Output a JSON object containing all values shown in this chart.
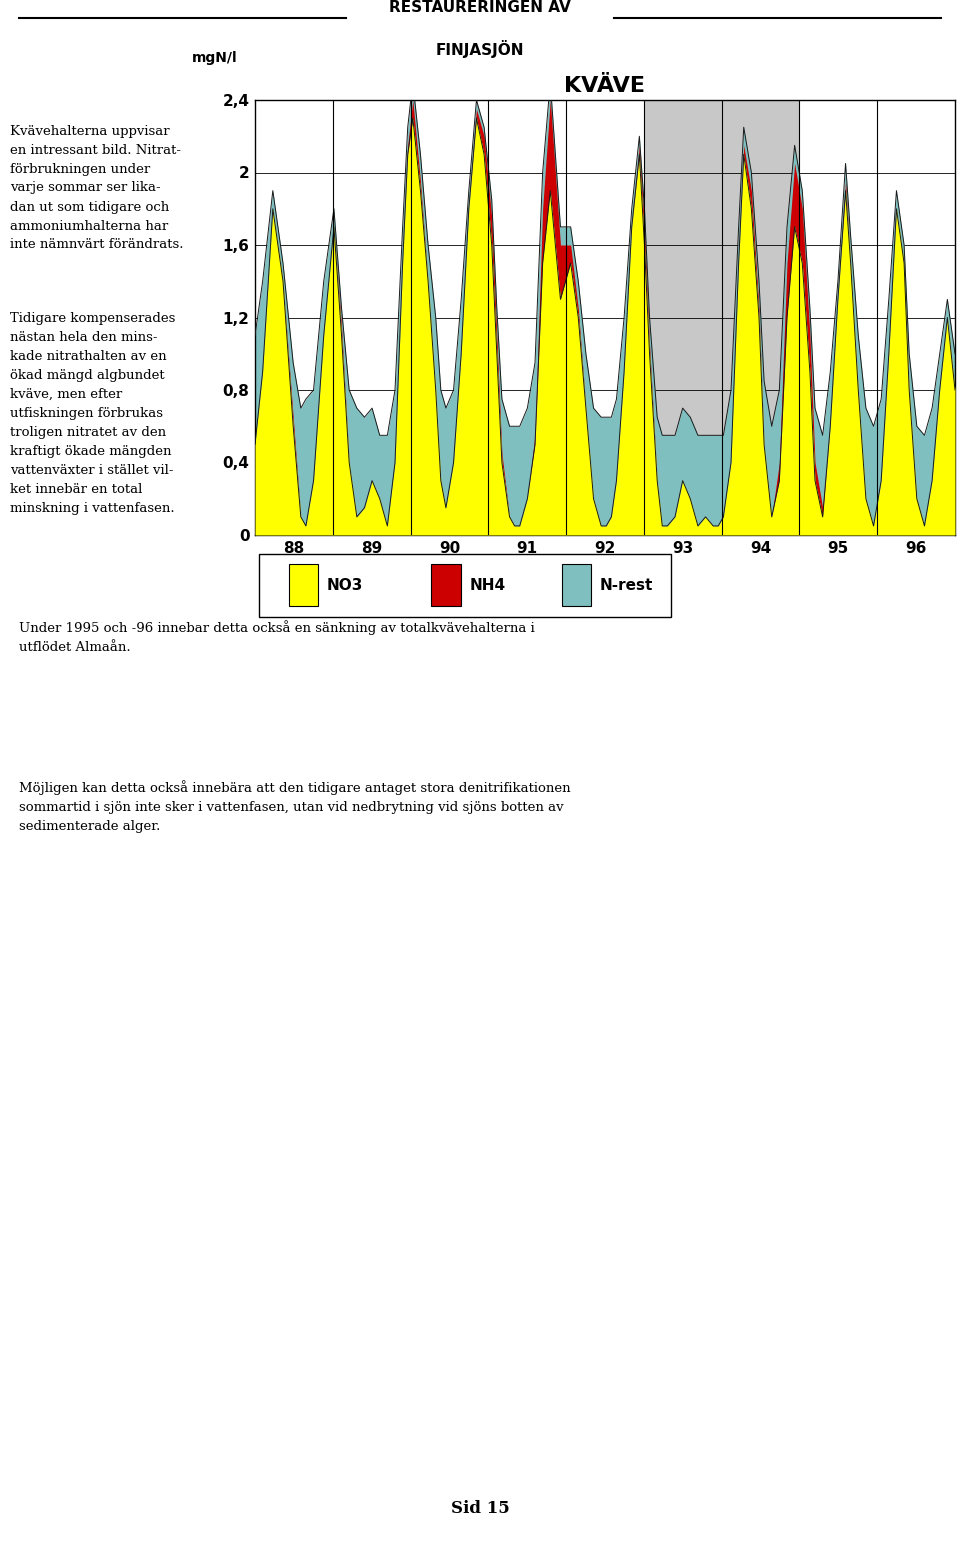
{
  "title": "KVÄVE",
  "header_line1": "RESTAURERINGEN AV",
  "header_line2": "FINJASJÖN",
  "ylabel": "mgN/l",
  "ylim": [
    0,
    2.4
  ],
  "yticks": [
    0,
    0.4,
    0.8,
    1.2,
    1.6,
    2.0,
    2.4
  ],
  "ytick_labels": [
    "0",
    "0,4",
    "0,8",
    "1,2",
    "1,6",
    "2",
    "2,4"
  ],
  "x_labels": [
    "88",
    "89",
    "90",
    "91",
    "92",
    "93",
    "94",
    "95",
    "96"
  ],
  "gray_region_years": [
    5,
    6
  ],
  "legend_items": [
    "NO3",
    "NH4",
    "N-rest"
  ],
  "legend_colors": [
    "#FFFF00",
    "#CC0000",
    "#7FBFBF"
  ],
  "colors": {
    "no3": "#FFFF00",
    "nh4": "#CC0000",
    "n_rest": "#7FBFBF",
    "outline": "#1a1a1a",
    "gray_bg": "#C8C8C8"
  },
  "left_text_para1": "Kvävehalterna uppvisar\nen intressant bild. Nitrat-\nförbrukningen under\nvarje sommar ser lika-\ndan ut som tidigare och\nammoniumhalterna har\ninte nämnvärt förändrats.",
  "left_text_para2": "Tidigare kompenserades\nnästan hela den mins-\nkade nitrathalten av en\nökad mängd algbundet\nkväve, men efter\nutfiskningen förbrukas\ntroligen nitratet av den\nkraftigt ökade mängden\nvattenväxter i stället vil-\nket innebär en total\nminskning i vattenfasen.",
  "below_chart_text": "Under 1995 och -96 innebar detta också en sänkning av totalkvävehalterna i\nutflödet Almaån.",
  "bottom_text": "Möjligen kan detta också innebära att den tidigare antaget stora denitrifikationen\nsommartid i sjön inte sker i vattenfasen, utan vid nedbrytning vid sjöns botten av\nsedimenterade alger.",
  "page_num": "Sid 15",
  "x_raw": [
    0.0,
    0.15,
    0.35,
    0.55,
    0.75,
    0.9,
    1.0,
    1.15,
    1.35,
    1.55,
    1.7,
    1.85,
    2.0,
    2.15,
    2.3,
    2.45,
    2.6,
    2.75,
    2.9,
    3.0,
    3.1,
    3.25,
    3.4,
    3.55,
    3.65,
    3.75,
    3.9,
    4.05,
    4.2,
    4.35,
    4.5,
    4.65,
    4.75,
    4.85,
    5.0,
    5.1,
    5.2,
    5.35,
    5.5,
    5.65,
    5.8,
    5.9,
    6.0,
    6.1,
    6.2,
    6.35,
    6.5,
    6.65,
    6.8,
    6.9,
    7.0,
    7.1,
    7.25,
    7.4,
    7.55,
    7.65,
    7.75,
    7.9,
    8.0,
    8.1,
    8.25,
    8.4,
    8.55,
    8.7,
    8.85,
    9.0,
    9.1,
    9.2,
    9.35,
    9.5,
    9.6,
    9.75,
    9.9,
    10.0,
    10.15,
    10.3,
    10.45,
    10.6,
    10.75,
    10.9,
    11.0,
    11.15,
    11.3,
    11.45,
    11.6,
    11.7,
    11.85,
    12.0,
    12.15,
    12.3,
    12.45,
    12.6,
    12.75,
    12.85,
    13.0,
    13.15,
    13.3,
    13.45,
    13.6,
    13.75
  ],
  "no3": [
    0.5,
    0.9,
    1.8,
    1.4,
    0.6,
    0.1,
    0.05,
    0.3,
    1.1,
    1.7,
    1.1,
    0.4,
    0.1,
    0.15,
    0.3,
    0.2,
    0.05,
    0.4,
    1.5,
    2.1,
    2.3,
    1.9,
    1.4,
    0.8,
    0.3,
    0.15,
    0.4,
    1.0,
    1.8,
    2.3,
    2.1,
    1.6,
    1.0,
    0.4,
    0.1,
    0.05,
    0.05,
    0.2,
    0.5,
    1.5,
    1.9,
    1.6,
    1.3,
    1.4,
    1.5,
    1.2,
    0.7,
    0.2,
    0.05,
    0.05,
    0.1,
    0.3,
    0.9,
    1.7,
    2.1,
    1.6,
    1.0,
    0.3,
    0.05,
    0.05,
    0.1,
    0.3,
    0.2,
    0.05,
    0.1,
    0.05,
    0.05,
    0.1,
    0.4,
    1.5,
    2.1,
    1.8,
    1.2,
    0.5,
    0.1,
    0.3,
    1.2,
    1.7,
    1.5,
    0.9,
    0.3,
    0.1,
    0.6,
    1.3,
    1.9,
    1.5,
    0.8,
    0.2,
    0.05,
    0.3,
    1.0,
    1.8,
    1.5,
    0.8,
    0.2,
    0.05,
    0.3,
    0.8,
    1.2,
    0.8
  ],
  "nh4": [
    0.0,
    0.0,
    0.0,
    0.0,
    0.05,
    0.0,
    0.0,
    0.0,
    0.0,
    0.0,
    0.05,
    0.0,
    0.0,
    0.0,
    0.0,
    0.0,
    0.0,
    0.0,
    0.0,
    0.05,
    0.1,
    0.05,
    0.0,
    0.0,
    0.0,
    0.0,
    0.0,
    0.0,
    0.0,
    0.05,
    0.1,
    0.15,
    0.1,
    0.05,
    0.0,
    0.0,
    0.0,
    0.0,
    0.05,
    0.3,
    0.5,
    0.4,
    0.3,
    0.2,
    0.1,
    0.05,
    0.0,
    0.0,
    0.0,
    0.0,
    0.0,
    0.0,
    0.0,
    0.0,
    0.05,
    0.1,
    0.05,
    0.0,
    0.0,
    0.0,
    0.0,
    0.0,
    0.0,
    0.0,
    0.0,
    0.0,
    0.0,
    0.0,
    0.0,
    0.0,
    0.05,
    0.1,
    0.05,
    0.0,
    0.0,
    0.1,
    0.3,
    0.35,
    0.3,
    0.2,
    0.1,
    0.05,
    0.0,
    0.0,
    0.05,
    0.0,
    0.0,
    0.0,
    0.0,
    0.0,
    0.0,
    0.0,
    0.0,
    0.0,
    0.0,
    0.0,
    0.0,
    0.0,
    0.0,
    0.0
  ],
  "n_rest": [
    0.6,
    0.5,
    0.1,
    0.1,
    0.3,
    0.6,
    0.7,
    0.5,
    0.3,
    0.1,
    0.1,
    0.4,
    0.6,
    0.5,
    0.4,
    0.35,
    0.5,
    0.4,
    0.2,
    0.1,
    0.1,
    0.15,
    0.2,
    0.4,
    0.5,
    0.55,
    0.4,
    0.3,
    0.1,
    0.05,
    0.05,
    0.1,
    0.15,
    0.3,
    0.5,
    0.55,
    0.55,
    0.5,
    0.4,
    0.2,
    0.1,
    0.1,
    0.1,
    0.1,
    0.1,
    0.15,
    0.3,
    0.5,
    0.6,
    0.6,
    0.55,
    0.45,
    0.3,
    0.1,
    0.05,
    0.1,
    0.15,
    0.35,
    0.5,
    0.5,
    0.45,
    0.4,
    0.45,
    0.5,
    0.45,
    0.5,
    0.5,
    0.45,
    0.4,
    0.2,
    0.1,
    0.1,
    0.15,
    0.35,
    0.5,
    0.4,
    0.2,
    0.1,
    0.1,
    0.15,
    0.3,
    0.4,
    0.3,
    0.1,
    0.1,
    0.15,
    0.3,
    0.5,
    0.55,
    0.45,
    0.3,
    0.1,
    0.1,
    0.2,
    0.4,
    0.5,
    0.4,
    0.2,
    0.1,
    0.2
  ]
}
